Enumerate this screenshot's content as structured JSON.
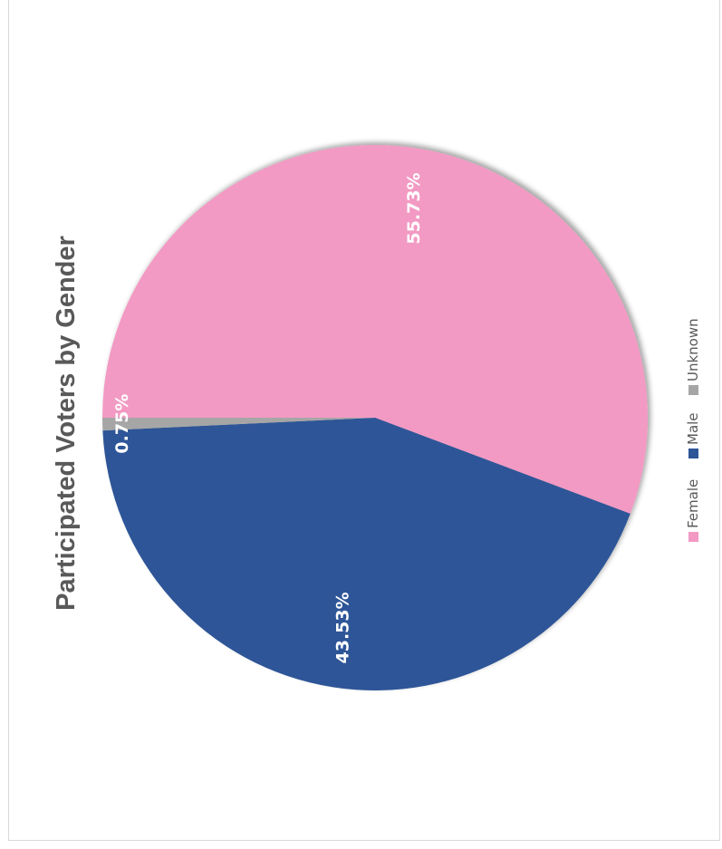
{
  "chart_data": {
    "type": "pie",
    "title": "Participated Voters by Gender",
    "categories": [
      "Female",
      "Male",
      "Unknown"
    ],
    "values": [
      55.73,
      43.53,
      0.75
    ],
    "labels": [
      "55.73%",
      "43.53%",
      "0.75%"
    ],
    "colors": [
      "#f29ac3",
      "#2d5597",
      "#a6a6a6"
    ],
    "legend": "bottom",
    "orientation": "rotated 90 degrees counter-clockwise"
  }
}
